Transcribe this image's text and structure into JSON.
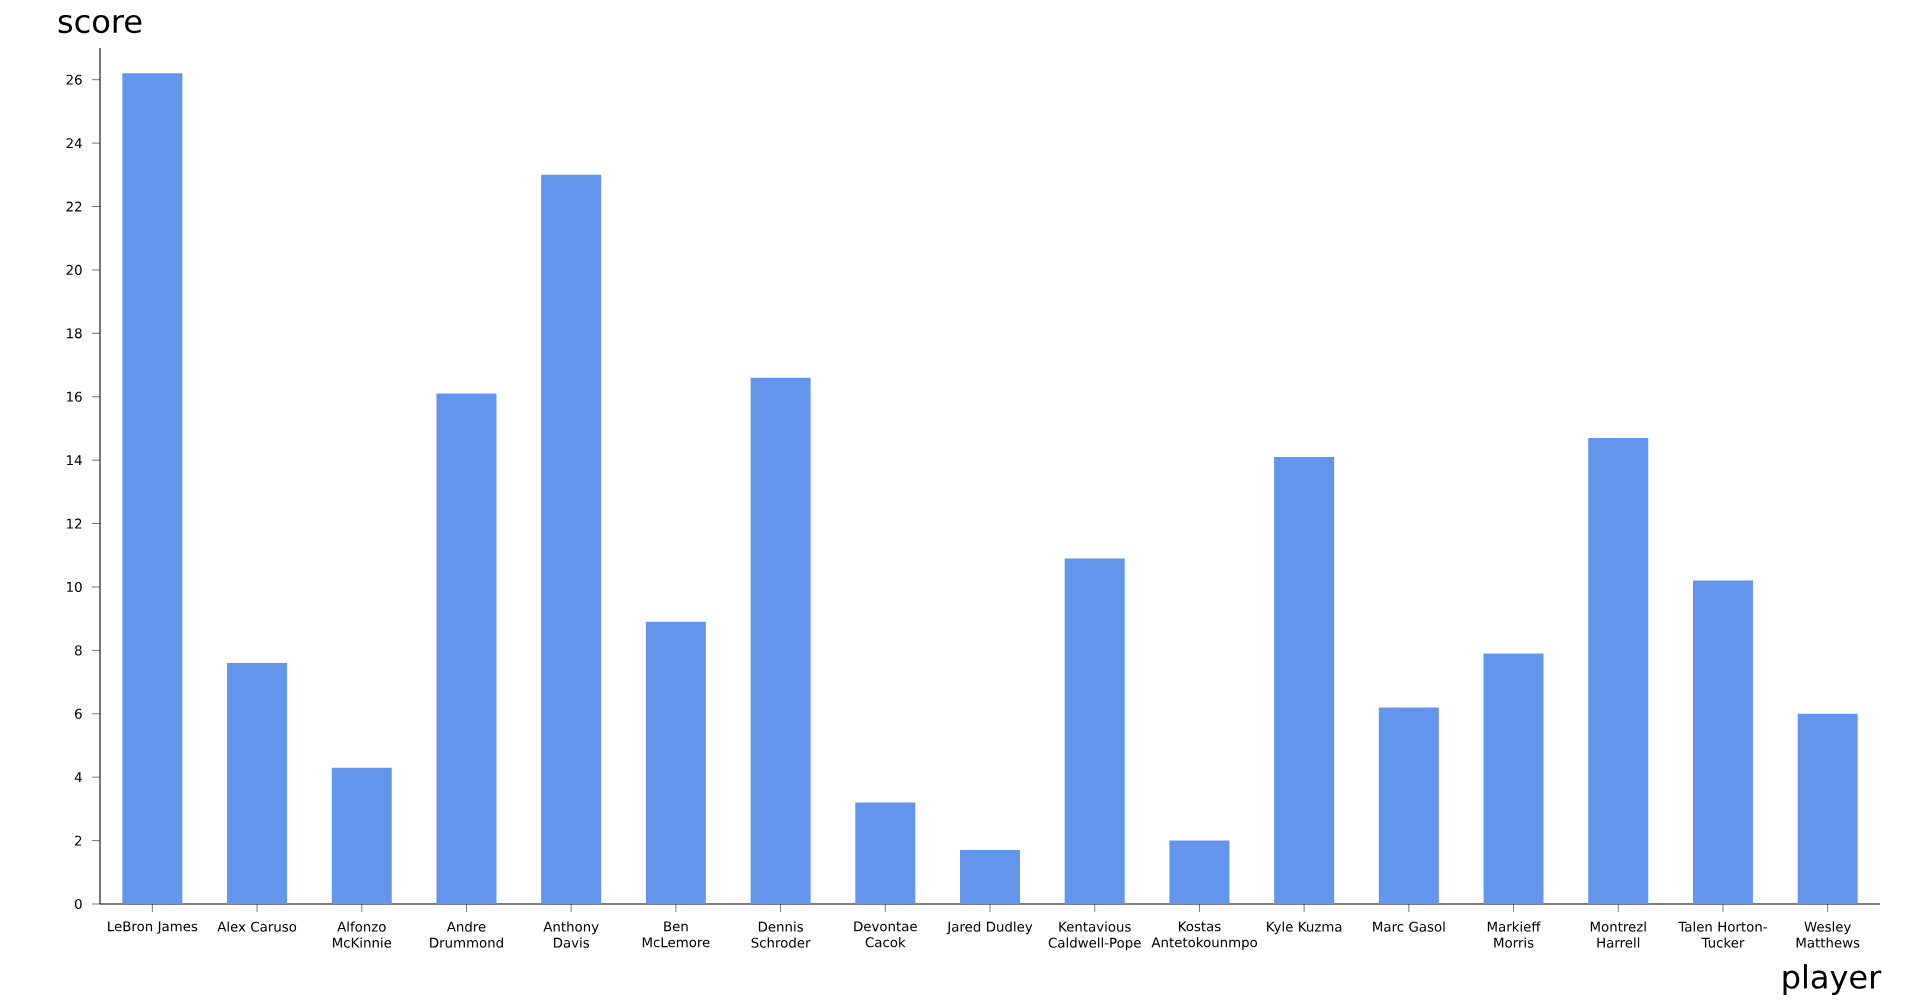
{
  "chart_data": {
    "type": "bar",
    "xlabel": "player",
    "ylabel": "score",
    "categories": [
      "LeBron James",
      "Alex Caruso",
      "Alfonzo McKinnie",
      "Andre Drummond",
      "Anthony Davis",
      "Ben McLemore",
      "Dennis Schroder",
      "Devontae Cacok",
      "Jared Dudley",
      "Kentavious Caldwell-Pope",
      "Kostas Antetokounmpo",
      "Kyle Kuzma",
      "Marc Gasol",
      "Markieff Morris",
      "Montrezl Harrell",
      "Talen Horton-Tucker",
      "Wesley Matthews"
    ],
    "values": [
      26.2,
      7.6,
      4.3,
      16.1,
      23.0,
      8.9,
      16.6,
      3.2,
      1.7,
      10.9,
      2.0,
      14.1,
      6.2,
      7.9,
      14.7,
      10.2,
      6.0
    ],
    "color": "#6495ed",
    "ylim": [
      0,
      27
    ],
    "yticks": [
      0,
      2,
      4,
      6,
      8,
      10,
      12,
      14,
      16,
      18,
      20,
      22,
      24,
      26
    ]
  }
}
